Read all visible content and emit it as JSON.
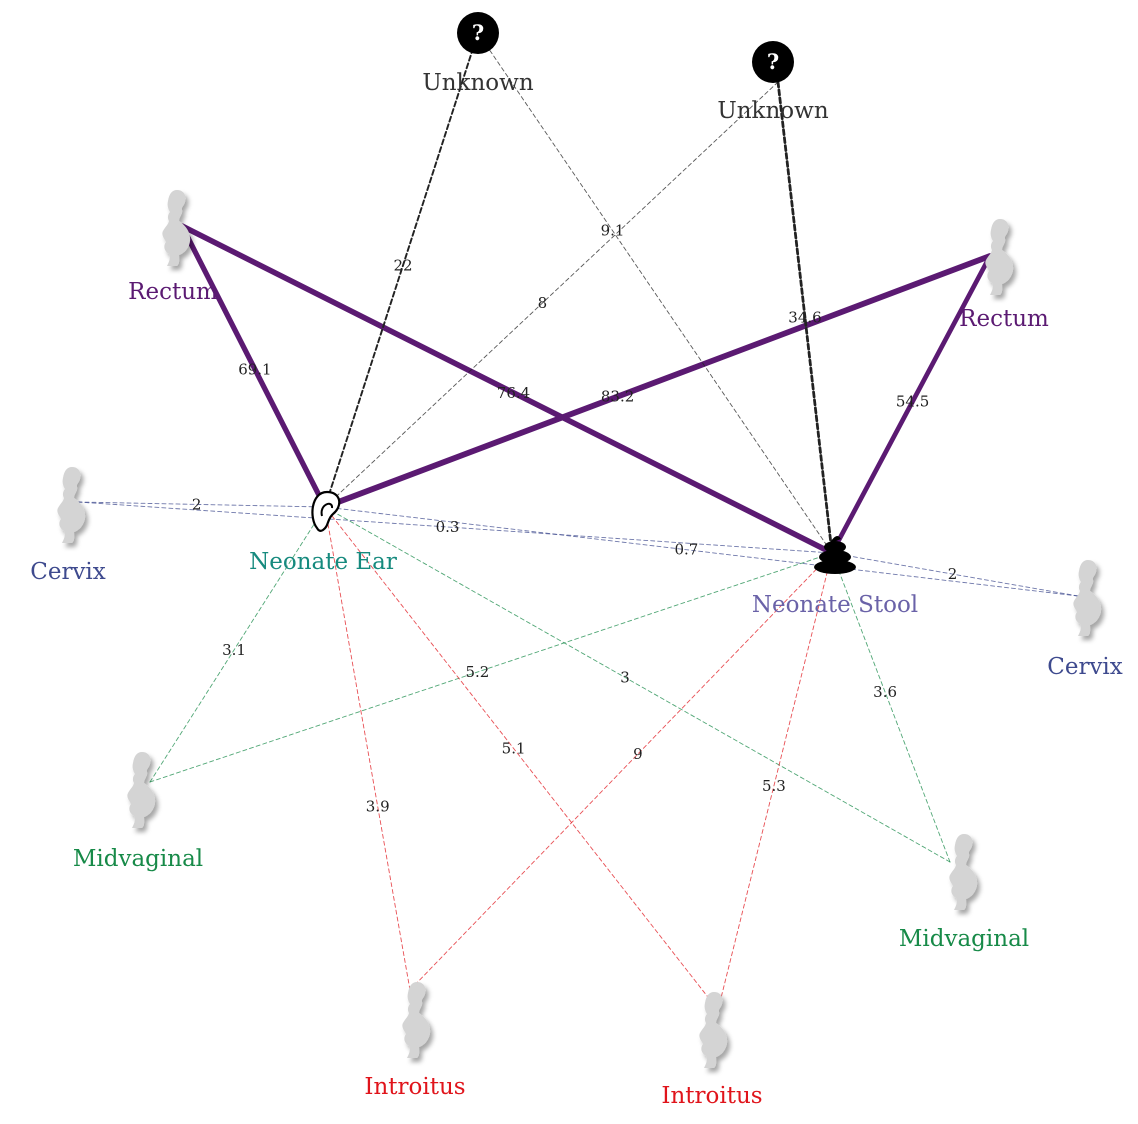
{
  "colors": {
    "rectum": "#5b1a72",
    "cervix": "#3e4a8e",
    "midvaginal": "#178a48",
    "introitus": "#e0141b",
    "unknown": "#222222",
    "ear_label": "#168a7e",
    "stool_label": "#6a62a8",
    "silhouette": "#d4d4d4"
  },
  "nodes": {
    "neonate_ear": {
      "label": "Neonate Ear",
      "icon": "ear-icon"
    },
    "neonate_stool": {
      "label": "Neonate Stool",
      "icon": "stool-icon"
    },
    "unknown_1": {
      "label": "Unknown",
      "icon": "question-icon"
    },
    "unknown_2": {
      "label": "Unknown",
      "icon": "question-icon"
    },
    "rectum_1": {
      "label": "Rectum",
      "icon": "pregnant-woman-icon"
    },
    "rectum_2": {
      "label": "Rectum",
      "icon": "pregnant-woman-icon"
    },
    "cervix_1": {
      "label": "Cervix",
      "icon": "pregnant-woman-icon"
    },
    "cervix_2": {
      "label": "Cervix",
      "icon": "pregnant-woman-icon"
    },
    "midvaginal_1": {
      "label": "Midvaginal",
      "icon": "pregnant-woman-icon"
    },
    "midvaginal_2": {
      "label": "Midvaginal",
      "icon": "pregnant-woman-icon"
    },
    "introitus_1": {
      "label": "Introitus",
      "icon": "pregnant-woman-icon"
    },
    "introitus_2": {
      "label": "Introitus",
      "icon": "pregnant-woman-icon"
    }
  },
  "edges": [
    {
      "from": "rectum_1",
      "to": "neonate_ear",
      "value": "69.1",
      "category": "rectum"
    },
    {
      "from": "rectum_1",
      "to": "neonate_stool",
      "value": "76.4",
      "category": "rectum"
    },
    {
      "from": "rectum_2",
      "to": "neonate_ear",
      "value": "83.2",
      "category": "rectum"
    },
    {
      "from": "rectum_2",
      "to": "neonate_stool",
      "value": "54.5",
      "category": "rectum"
    },
    {
      "from": "unknown_1",
      "to": "neonate_ear",
      "value": "22",
      "category": "unknown"
    },
    {
      "from": "unknown_1",
      "to": "neonate_stool",
      "value": "9.1",
      "category": "unknown"
    },
    {
      "from": "unknown_2",
      "to": "neonate_ear",
      "value": "8",
      "category": "unknown"
    },
    {
      "from": "unknown_2",
      "to": "neonate_stool",
      "value": "34.6",
      "category": "unknown"
    },
    {
      "from": "cervix_1",
      "to": "neonate_ear",
      "value": "2",
      "category": "cervix"
    },
    {
      "from": "cervix_1",
      "to": "neonate_stool",
      "value": "0.3",
      "category": "cervix"
    },
    {
      "from": "cervix_2",
      "to": "neonate_ear",
      "value": "0.7",
      "category": "cervix"
    },
    {
      "from": "cervix_2",
      "to": "neonate_stool",
      "value": "2",
      "category": "cervix"
    },
    {
      "from": "midvaginal_1",
      "to": "neonate_ear",
      "value": "3.1",
      "category": "midvaginal"
    },
    {
      "from": "midvaginal_1",
      "to": "neonate_stool",
      "value": "5.2",
      "category": "midvaginal"
    },
    {
      "from": "midvaginal_2",
      "to": "neonate_ear",
      "value": "3",
      "category": "midvaginal"
    },
    {
      "from": "midvaginal_2",
      "to": "neonate_stool",
      "value": "3.6",
      "category": "midvaginal"
    },
    {
      "from": "introitus_1",
      "to": "neonate_ear",
      "value": "3.9",
      "category": "introitus"
    },
    {
      "from": "introitus_1",
      "to": "neonate_stool",
      "value": "9",
      "category": "introitus"
    },
    {
      "from": "introitus_2",
      "to": "neonate_ear",
      "value": "5.1",
      "category": "introitus"
    },
    {
      "from": "introitus_2",
      "to": "neonate_stool",
      "value": "5.3",
      "category": "introitus"
    }
  ]
}
